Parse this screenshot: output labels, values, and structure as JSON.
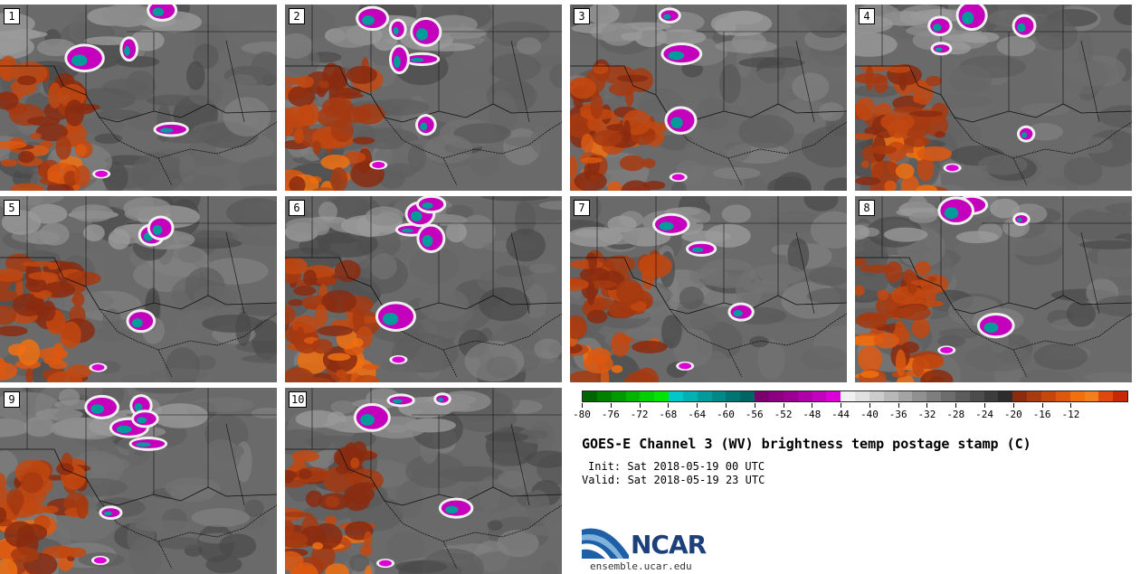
{
  "panels": [
    {
      "label": "1"
    },
    {
      "label": "2"
    },
    {
      "label": "3"
    },
    {
      "label": "4"
    },
    {
      "label": "5"
    },
    {
      "label": "6"
    },
    {
      "label": "7"
    },
    {
      "label": "8"
    },
    {
      "label": "9"
    },
    {
      "label": "10"
    }
  ],
  "colorbar": {
    "colors": [
      "#006400",
      "#007e00",
      "#009800",
      "#00b400",
      "#00d000",
      "#00e400",
      "#00c8c8",
      "#00b2b2",
      "#009c9c",
      "#008888",
      "#007474",
      "#006464",
      "#7a006e",
      "#8a007e",
      "#9a0090",
      "#ae00a6",
      "#c400bc",
      "#dc00d6",
      "#f0f0f0",
      "#e0e0e0",
      "#cccccc",
      "#b8b8b8",
      "#a4a4a4",
      "#909090",
      "#7e7e7e",
      "#6c6c6c",
      "#5c5c5c",
      "#4c4c4c",
      "#3c3c3c",
      "#2c2c2c",
      "#8a2c10",
      "#a63a10",
      "#c24810",
      "#dc5810",
      "#f07010",
      "#f08020",
      "#e04810",
      "#c82808"
    ],
    "ticks": [
      "-80",
      "-76",
      "-72",
      "-68",
      "-64",
      "-60",
      "-56",
      "-52",
      "-48",
      "-44",
      "-40",
      "-36",
      "-32",
      "-28",
      "-24",
      "-20",
      "-16",
      "-12"
    ]
  },
  "title": "GOES-E Channel 3 (WV) brightness temp postage stamp (C)",
  "init": "Init: Sat 2018-05-19 00 UTC",
  "valid": "Valid: Sat 2018-05-19 23 UTC",
  "logo": {
    "name": "NCAR",
    "url": "ensemble.ucar.edu"
  }
}
